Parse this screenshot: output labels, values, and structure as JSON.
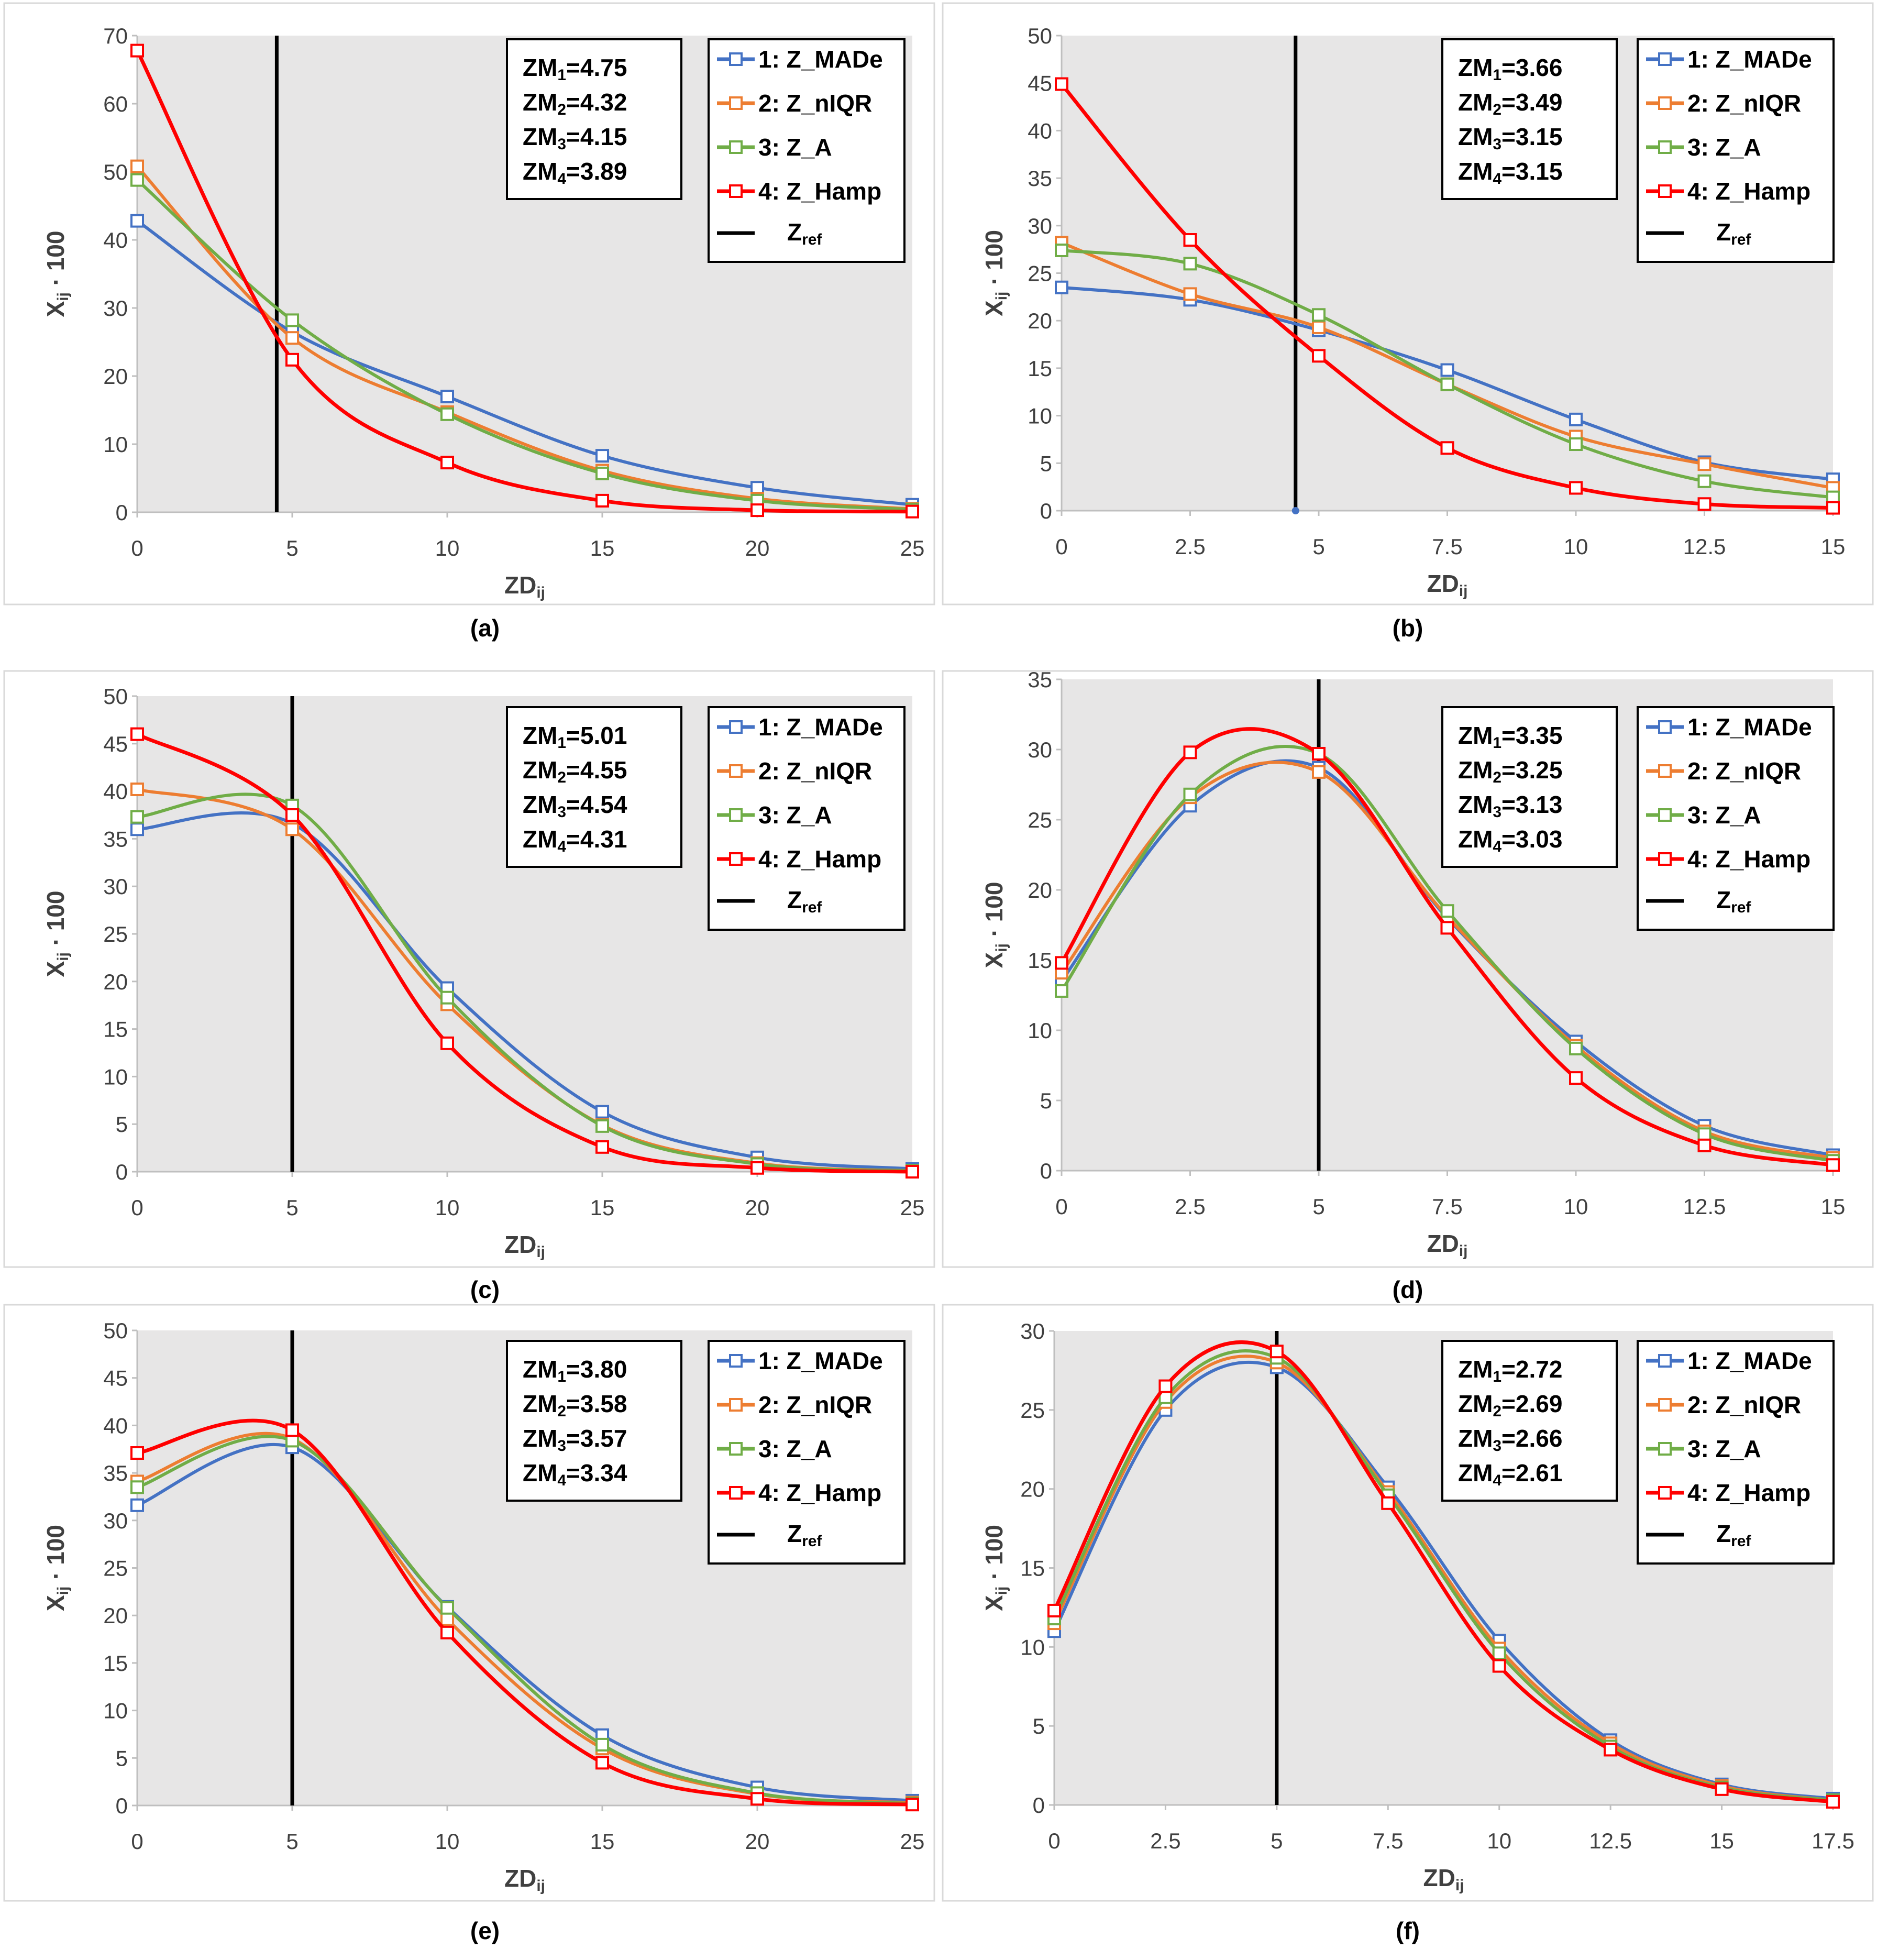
{
  "series_meta": [
    {
      "name": "1: Z_MADe",
      "color": "#4472C4"
    },
    {
      "name": "2: Z_nIQR",
      "color": "#ED7D31"
    },
    {
      "name": "3: Z_A",
      "color": "#70AD47"
    },
    {
      "name": "4: Z_Hamp",
      "color": "#FF0000"
    }
  ],
  "ref_legend": {
    "name": "Zref",
    "color": "#000000"
  },
  "chart_data": [
    {
      "id": "a",
      "caption": "(a)",
      "type": "line",
      "xlabel": "ZDij",
      "ylabel": "Xij · 100",
      "xlim": [
        0,
        25
      ],
      "ylim": [
        0,
        70
      ],
      "xticks": [
        0,
        5,
        10,
        15,
        20,
        25
      ],
      "yticks": [
        0,
        10,
        20,
        30,
        40,
        50,
        60,
        70
      ],
      "xtick_labels": [
        "0",
        "5",
        "10",
        "15",
        "20",
        "25"
      ],
      "zref": 4.5,
      "zm": [
        "ZM1=4.75",
        "ZM2=4.32",
        "ZM3=4.15",
        "ZM4=3.89"
      ],
      "x": [
        0,
        5,
        10,
        15,
        20,
        25
      ],
      "series": [
        {
          "name": "1: Z_MADe",
          "values": [
            42.8,
            26.5,
            17.0,
            8.3,
            3.6,
            1.1
          ]
        },
        {
          "name": "2: Z_nIQR",
          "values": [
            50.8,
            25.6,
            14.7,
            6.1,
            2.0,
            0.5
          ]
        },
        {
          "name": "3: Z_A",
          "values": [
            48.8,
            28.2,
            14.4,
            5.7,
            1.7,
            0.4
          ]
        },
        {
          "name": "4: Z_Hamp",
          "values": [
            67.8,
            22.4,
            7.3,
            1.7,
            0.3,
            0.1
          ]
        }
      ]
    },
    {
      "id": "b",
      "caption": "(b)",
      "type": "line",
      "xlabel": "ZDij",
      "ylabel": "Xij · 100",
      "xlim": [
        0,
        15
      ],
      "ylim": [
        0,
        50
      ],
      "xticks": [
        0,
        2.5,
        5,
        7.5,
        10,
        12.5,
        15
      ],
      "yticks": [
        0,
        5,
        10,
        15,
        20,
        25,
        30,
        35,
        40,
        45,
        50
      ],
      "xtick_labels": [
        "0",
        "2.5",
        "5",
        "7.5",
        "10",
        "12.5",
        "15"
      ],
      "zref": 4.55,
      "zm": [
        "ZM1=3.66",
        "ZM2=3.49",
        "ZM3=3.15",
        "ZM4=3.15"
      ],
      "x": [
        0,
        2.5,
        5,
        7.5,
        10,
        12.5,
        15
      ],
      "series": [
        {
          "name": "1: Z_MADe",
          "values": [
            23.5,
            22.2,
            19.0,
            14.8,
            9.6,
            5.1,
            3.3
          ]
        },
        {
          "name": "2: Z_nIQR",
          "values": [
            28.2,
            22.8,
            19.3,
            13.3,
            7.8,
            4.9,
            2.4
          ]
        },
        {
          "name": "3: Z_A",
          "values": [
            27.4,
            26.0,
            20.6,
            13.3,
            7.0,
            3.1,
            1.4
          ]
        },
        {
          "name": "4: Z_Hamp",
          "values": [
            44.9,
            28.5,
            16.3,
            6.6,
            2.4,
            0.7,
            0.3
          ]
        }
      ]
    },
    {
      "id": "c",
      "caption": "(c)",
      "type": "line",
      "xlabel": "ZDij",
      "ylabel": "Xij · 100",
      "xlim": [
        0,
        25
      ],
      "ylim": [
        0,
        50
      ],
      "xticks": [
        0,
        5,
        10,
        15,
        20,
        25
      ],
      "yticks": [
        0,
        5,
        10,
        15,
        20,
        25,
        30,
        35,
        40,
        45,
        50
      ],
      "xtick_labels": [
        "0",
        "5",
        "10",
        "15",
        "20",
        "25"
      ],
      "zref": 5.0,
      "zm": [
        "ZM1=5.01",
        "ZM2=4.55",
        "ZM3=4.54",
        "ZM4=4.31"
      ],
      "x": [
        0,
        5,
        10,
        15,
        20,
        25
      ],
      "series": [
        {
          "name": "1: Z_MADe",
          "values": [
            36.0,
            36.6,
            19.3,
            6.3,
            1.5,
            0.3
          ]
        },
        {
          "name": "2: Z_nIQR",
          "values": [
            40.2,
            36.0,
            17.6,
            4.9,
            0.9,
            0.1
          ]
        },
        {
          "name": "3: Z_A",
          "values": [
            37.3,
            38.5,
            18.3,
            4.8,
            0.8,
            0.1
          ]
        },
        {
          "name": "4: Z_Hamp",
          "values": [
            46.0,
            37.5,
            13.5,
            2.6,
            0.4,
            0.0
          ]
        }
      ]
    },
    {
      "id": "d",
      "caption": "(d)",
      "type": "line",
      "xlabel": "ZDij",
      "ylabel": "Xij · 100",
      "xlim": [
        0,
        15
      ],
      "ylim": [
        0,
        35
      ],
      "xticks": [
        0,
        2.5,
        5,
        7.5,
        10,
        12.5,
        15
      ],
      "yticks": [
        0,
        5,
        10,
        15,
        20,
        25,
        30,
        35
      ],
      "xtick_labels": [
        "0",
        "2.5",
        "5",
        "7.5",
        "10",
        "12.5",
        "15"
      ],
      "zref": 5.0,
      "zm": [
        "ZM1=3.35",
        "ZM2=3.25",
        "ZM3=3.13",
        "ZM4=3.03"
      ],
      "x": [
        0,
        2.5,
        5,
        7.5,
        10,
        12.5,
        15
      ],
      "series": [
        {
          "name": "1: Z_MADe",
          "values": [
            13.5,
            26.0,
            28.7,
            18.0,
            9.2,
            3.2,
            1.1
          ]
        },
        {
          "name": "2: Z_nIQR",
          "values": [
            14.1,
            26.6,
            28.4,
            18.1,
            8.9,
            2.8,
            0.9
          ]
        },
        {
          "name": "3: Z_A",
          "values": [
            12.8,
            26.8,
            29.7,
            18.5,
            8.7,
            2.6,
            0.7
          ]
        },
        {
          "name": "4: Z_Hamp",
          "values": [
            14.8,
            29.8,
            29.7,
            17.3,
            6.6,
            1.8,
            0.4
          ]
        }
      ]
    },
    {
      "id": "e",
      "caption": "(e)",
      "type": "line",
      "xlabel": "ZDij",
      "ylabel": "Xij · 100",
      "xlim": [
        0,
        25
      ],
      "ylim": [
        0,
        50
      ],
      "xticks": [
        0,
        5,
        10,
        15,
        20,
        25
      ],
      "yticks": [
        0,
        5,
        10,
        15,
        20,
        25,
        30,
        35,
        40,
        45,
        50
      ],
      "xtick_labels": [
        "0",
        "5",
        "10",
        "15",
        "20",
        "25"
      ],
      "zref": 5.0,
      "zm": [
        "ZM1=3.80",
        "ZM2=3.58",
        "ZM3=3.57",
        "ZM4=3.34"
      ],
      "x": [
        0,
        5,
        10,
        15,
        20,
        25
      ],
      "series": [
        {
          "name": "1: Z_MADe",
          "values": [
            31.6,
            37.7,
            20.9,
            7.4,
            1.9,
            0.5
          ]
        },
        {
          "name": "2: Z_nIQR",
          "values": [
            34.1,
            38.6,
            19.6,
            6.0,
            1.2,
            0.3
          ]
        },
        {
          "name": "3: Z_A",
          "values": [
            33.5,
            38.4,
            20.8,
            6.4,
            1.3,
            0.2
          ]
        },
        {
          "name": "4: Z_Hamp",
          "values": [
            37.1,
            39.5,
            18.2,
            4.5,
            0.7,
            0.1
          ]
        }
      ]
    },
    {
      "id": "f",
      "caption": "(f)",
      "type": "line",
      "xlabel": "ZDij",
      "ylabel": "Xij · 100",
      "xlim": [
        0,
        17.5
      ],
      "ylim": [
        0,
        30
      ],
      "xticks": [
        0,
        2.5,
        5,
        7.5,
        10,
        12.5,
        15,
        17.5
      ],
      "yticks": [
        0,
        5,
        10,
        15,
        20,
        25,
        30
      ],
      "xtick_labels": [
        "0",
        "2.5",
        "5",
        "7.5",
        "10",
        "12.5",
        "15",
        "17.5"
      ],
      "zref": 5.0,
      "zm": [
        "ZM1=2.72",
        "ZM2=2.69",
        "ZM3=2.66",
        "ZM4=2.61"
      ],
      "x": [
        0,
        2.5,
        5,
        7.5,
        10,
        12.5,
        15,
        17.5
      ],
      "series": [
        {
          "name": "1: Z_MADe",
          "values": [
            11.0,
            25.0,
            27.7,
            20.1,
            10.4,
            4.1,
            1.3,
            0.4
          ]
        },
        {
          "name": "2: Z_nIQR",
          "values": [
            11.5,
            25.5,
            28.0,
            19.8,
            9.9,
            3.9,
            1.2,
            0.3
          ]
        },
        {
          "name": "3: Z_A",
          "values": [
            11.8,
            25.8,
            28.3,
            19.6,
            9.6,
            3.7,
            1.1,
            0.3
          ]
        },
        {
          "name": "4: Z_Hamp",
          "values": [
            12.3,
            26.5,
            28.7,
            19.1,
            8.8,
            3.5,
            1.0,
            0.2
          ]
        }
      ]
    }
  ]
}
